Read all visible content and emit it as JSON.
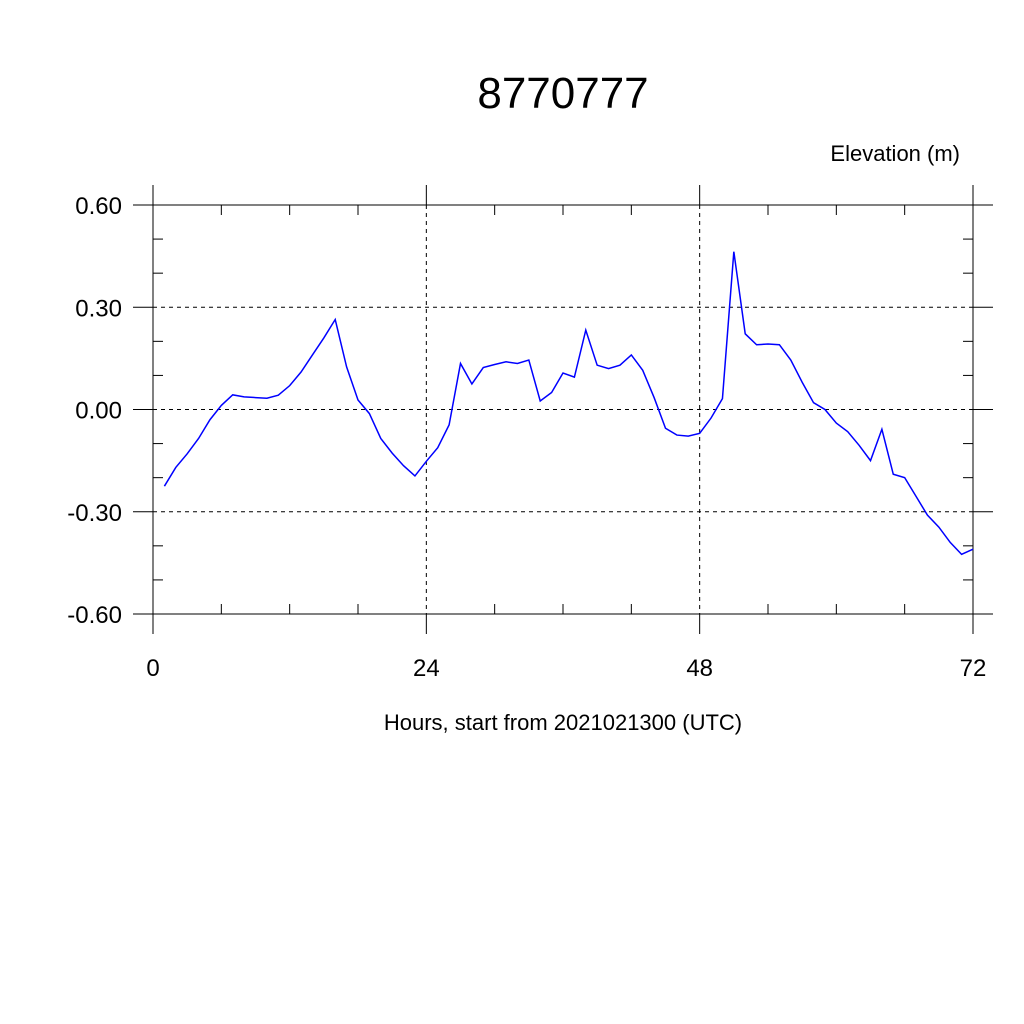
{
  "chart_data": {
    "type": "line",
    "title": "8770777",
    "ylabel": "Elevation (m)",
    "xlabel": "Hours, start from 2021021300 (UTC)",
    "xlim": [
      0,
      72
    ],
    "ylim": [
      -0.6,
      0.6
    ],
    "x_ticks": [
      0,
      24,
      48,
      72
    ],
    "x_tick_labels": [
      "0",
      "24",
      "48",
      "72"
    ],
    "y_ticks": [
      0.6,
      0.3,
      0.0,
      -0.3,
      -0.6
    ],
    "y_tick_labels": [
      "0.60",
      "0.30",
      "0.00",
      "-0.30",
      "-0.60"
    ],
    "grid": true,
    "line_color": "#0000ff",
    "series": [
      {
        "x": [
          1,
          2,
          3,
          4,
          5,
          6,
          7,
          8,
          9,
          10,
          11,
          12,
          13,
          14,
          15,
          16,
          17,
          18,
          19,
          20,
          21,
          22,
          23,
          24,
          25,
          26,
          27,
          28,
          29,
          30,
          31,
          32,
          33,
          34,
          35,
          36,
          37,
          38,
          39,
          40,
          41,
          42,
          43,
          44,
          45,
          46,
          47,
          48,
          49,
          50,
          51,
          52,
          53,
          54,
          55,
          56,
          57,
          58,
          59,
          60,
          61,
          62,
          63,
          64,
          65,
          66,
          67,
          68,
          69,
          70,
          71,
          72
        ],
        "y": [
          -0.225,
          -0.17,
          -0.13,
          -0.085,
          -0.03,
          0.012,
          0.043,
          0.037,
          0.035,
          0.033,
          0.042,
          0.07,
          0.11,
          0.16,
          0.21,
          0.264,
          0.125,
          0.028,
          -0.012,
          -0.085,
          -0.128,
          -0.165,
          -0.195,
          -0.152,
          -0.112,
          -0.045,
          0.135,
          0.075,
          0.123,
          0.132,
          0.14,
          0.135,
          0.145,
          0.025,
          0.05,
          0.107,
          0.095,
          0.233,
          0.13,
          0.12,
          0.13,
          0.16,
          0.115,
          0.035,
          -0.055,
          -0.075,
          -0.078,
          -0.07,
          -0.025,
          0.032,
          0.463,
          0.222,
          0.19,
          0.192,
          0.19,
          0.145,
          0.08,
          0.02,
          0.0,
          -0.04,
          -0.065,
          -0.105,
          -0.15,
          -0.058,
          -0.19,
          -0.2,
          -0.255,
          -0.31,
          -0.345,
          -0.39,
          -0.425,
          -0.41
        ]
      }
    ]
  }
}
